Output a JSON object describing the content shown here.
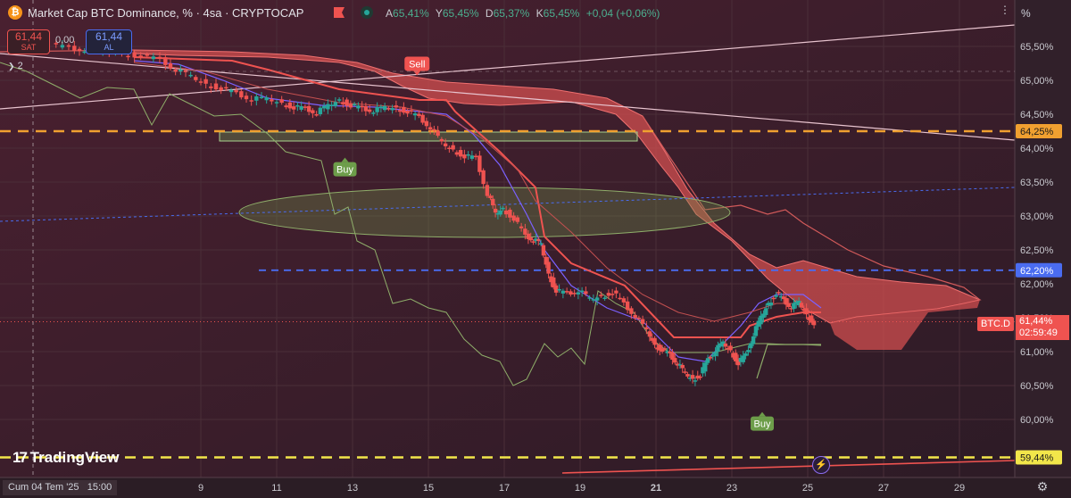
{
  "header": {
    "title": "Market Cap BTC Dominance, % · 4sa · CRYPTOCAP",
    "ohlc": [
      {
        "k": "A",
        "v": "65,41%"
      },
      {
        "k": "Y",
        "v": "65,45%"
      },
      {
        "k": "D",
        "v": "65,37%"
      },
      {
        "k": "K",
        "v": "65,45%"
      }
    ],
    "change": "+0,04 (+0,06%)"
  },
  "trade": {
    "sell_price": "61,44",
    "sell_label": "SAT",
    "spread": "0,00",
    "buy_price": "61,44",
    "buy_label": "AL"
  },
  "indicator_badge": "2",
  "scale_mode": "%",
  "brand": "TradingView",
  "crosshair_date": "Cum 04 Tem '25   15:00",
  "price_tag": {
    "symbol": "BTC.D",
    "value": "61,44%",
    "countdown": "02:59:49"
  },
  "colors": {
    "background": "#3a1e28",
    "bull": "#26a69a",
    "bear": "#ef5350",
    "cloud": "#e35d5d",
    "orange_line": "#f0a030",
    "yellow_line": "#f2e64a",
    "blue_line": "#4a6cf0"
  },
  "chart_data": {
    "type": "candlestick",
    "title": "Market Cap BTC Dominance, % · 4sa · CRYPTOCAP",
    "y_ticks": [
      "65,50%",
      "65,00%",
      "64,50%",
      "64,00%",
      "63,50%",
      "63,00%",
      "62,50%",
      "62,00%",
      "61,50%",
      "61,00%",
      "60,50%",
      "60,00%"
    ],
    "x_ticks": [
      "9",
      "11",
      "13",
      "15",
      "17",
      "19",
      "21",
      "23",
      "25",
      "27",
      "29"
    ],
    "ylim": [
      59.3,
      65.9
    ],
    "level_labels": [
      {
        "label": "64,25%",
        "value": 64.25,
        "kind": "orange"
      },
      {
        "label": "62,20%",
        "value": 62.2,
        "kind": "blue"
      },
      {
        "label": "59,44%",
        "value": 59.44,
        "kind": "yellow"
      }
    ],
    "signals": [
      {
        "label": "Sell",
        "kind": "sell",
        "x": 14.7,
        "y": 65.06
      },
      {
        "label": "Buy",
        "kind": "buy",
        "x": 12.8,
        "y": 63.9
      },
      {
        "label": "Buy",
        "kind": "buy",
        "x": 23.8,
        "y": 60.15
      }
    ],
    "close_path": [
      [
        5.1,
        65.55
      ],
      [
        5.6,
        65.47
      ],
      [
        6.0,
        65.45
      ],
      [
        6.5,
        65.42
      ],
      [
        7.0,
        65.4
      ],
      [
        7.5,
        65.38
      ],
      [
        8.0,
        65.3
      ],
      [
        8.4,
        65.15
      ],
      [
        8.8,
        65.03
      ],
      [
        9.2,
        64.95
      ],
      [
        9.6,
        64.9
      ],
      [
        10.0,
        64.8
      ],
      [
        10.4,
        64.72
      ],
      [
        10.8,
        64.7
      ],
      [
        11.2,
        64.67
      ],
      [
        11.5,
        64.62
      ],
      [
        11.8,
        64.58
      ],
      [
        12.1,
        64.52
      ],
      [
        12.4,
        64.6
      ],
      [
        12.7,
        64.72
      ],
      [
        13.0,
        64.65
      ],
      [
        13.3,
        64.58
      ],
      [
        13.6,
        64.55
      ],
      [
        13.9,
        64.57
      ],
      [
        14.2,
        64.6
      ],
      [
        14.5,
        64.56
      ],
      [
        14.8,
        64.45
      ],
      [
        15.1,
        64.3
      ],
      [
        15.4,
        64.05
      ],
      [
        15.7,
        63.98
      ],
      [
        16.0,
        63.9
      ],
      [
        16.3,
        63.85
      ],
      [
        16.6,
        63.32
      ],
      [
        16.8,
        63.0
      ],
      [
        17.0,
        63.12
      ],
      [
        17.3,
        62.98
      ],
      [
        17.6,
        62.7
      ],
      [
        17.8,
        62.65
      ],
      [
        18.0,
        62.55
      ],
      [
        18.2,
        62.15
      ],
      [
        18.4,
        61.92
      ],
      [
        18.7,
        61.85
      ],
      [
        19.0,
        61.9
      ],
      [
        19.3,
        61.75
      ],
      [
        19.6,
        61.82
      ],
      [
        19.9,
        61.9
      ],
      [
        20.2,
        61.7
      ],
      [
        20.5,
        61.52
      ],
      [
        20.8,
        61.28
      ],
      [
        21.0,
        61.1
      ],
      [
        21.2,
        61.05
      ],
      [
        21.4,
        60.95
      ],
      [
        21.6,
        60.82
      ],
      [
        21.8,
        60.65
      ],
      [
        22.0,
        60.6
      ],
      [
        22.2,
        60.68
      ],
      [
        22.4,
        60.88
      ],
      [
        22.6,
        61.02
      ],
      [
        22.8,
        61.1
      ],
      [
        23.0,
        61.02
      ],
      [
        23.2,
        60.85
      ],
      [
        23.4,
        60.95
      ],
      [
        23.6,
        61.25
      ],
      [
        23.8,
        61.48
      ],
      [
        24.0,
        61.72
      ],
      [
        24.2,
        61.88
      ],
      [
        24.4,
        61.75
      ],
      [
        24.6,
        61.65
      ],
      [
        24.8,
        61.7
      ],
      [
        25.0,
        61.55
      ],
      [
        25.2,
        61.44
      ]
    ]
  }
}
